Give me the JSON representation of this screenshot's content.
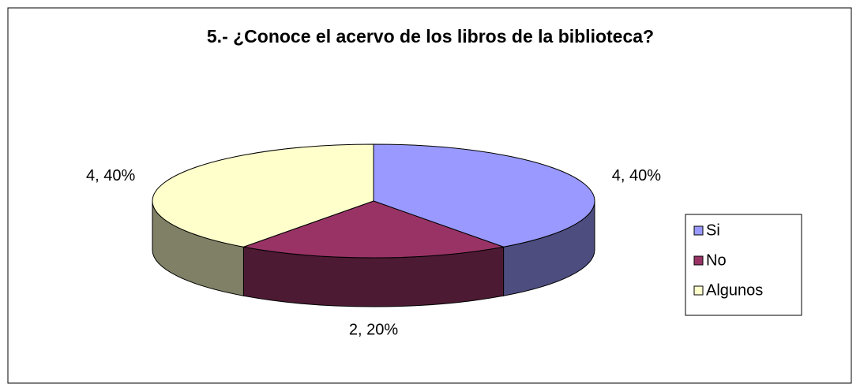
{
  "chart_data": {
    "type": "pie",
    "title": "5.- ¿Conoce el acervo de los libros de la biblioteca?",
    "categories": [
      "Si",
      "No",
      "Algunos"
    ],
    "values": [
      4,
      2,
      4
    ],
    "value_labels": [
      "4, 40%",
      "2, 20%",
      "4, 40%"
    ],
    "colors": [
      "#9999ff",
      "#993366",
      "#ffffcc"
    ],
    "legend": "right"
  }
}
